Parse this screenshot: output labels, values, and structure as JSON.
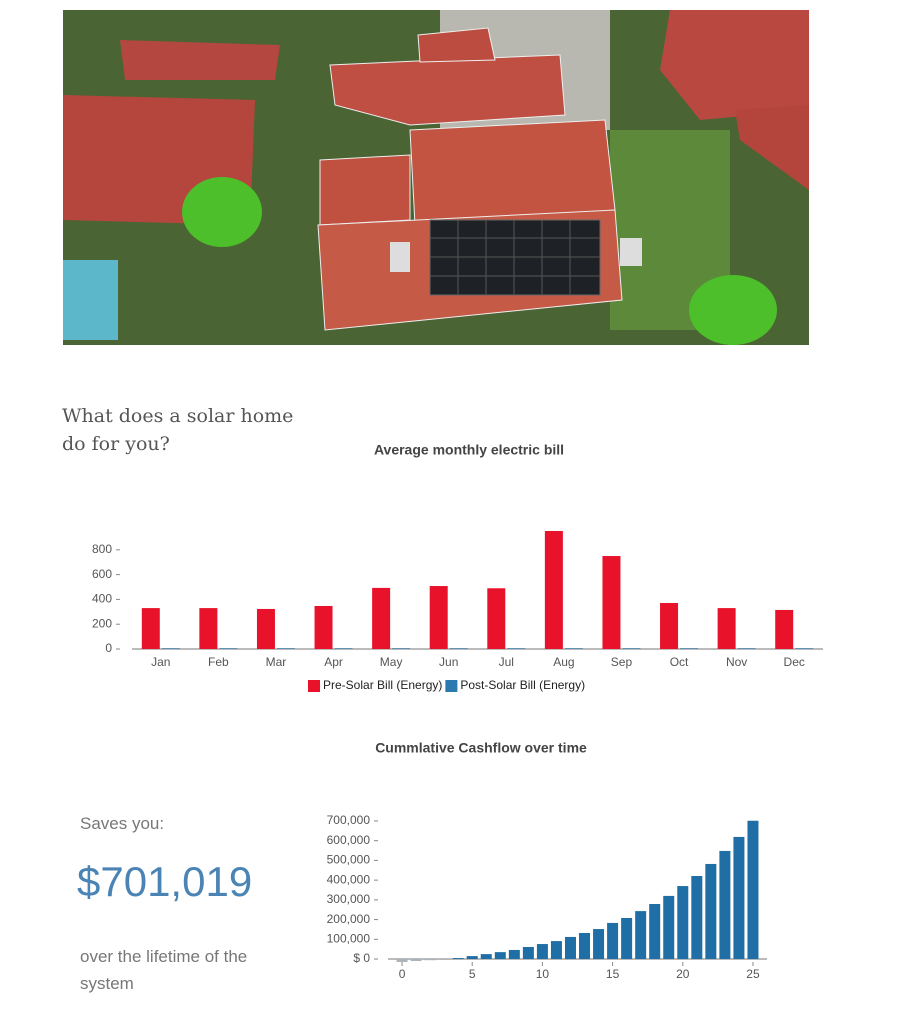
{
  "heading": "What does a solar home do for you?",
  "savings": {
    "label": "Saves you:",
    "amount": "$701,019",
    "note": "over the lifetime of the system"
  },
  "chart_data": [
    {
      "type": "bar",
      "title": "Average monthly electric bill",
      "categories": [
        "Jan",
        "Feb",
        "Mar",
        "Apr",
        "May",
        "Jun",
        "Jul",
        "Aug",
        "Sep",
        "Oct",
        "Nov",
        "Dec"
      ],
      "series": [
        {
          "name": "Pre-Solar Bill (Energy)",
          "color": "#e8132b",
          "values": [
            330,
            330,
            323,
            347,
            493,
            508,
            490,
            952,
            750,
            371,
            330,
            315
          ]
        },
        {
          "name": "Post-Solar Bill (Energy)",
          "color": "#2a7ab0",
          "values": [
            5,
            5,
            5,
            5,
            5,
            5,
            5,
            5,
            5,
            5,
            5,
            5
          ]
        }
      ],
      "ylim": [
        0,
        960
      ],
      "yticks": [
        0,
        200,
        400,
        600,
        800
      ],
      "legend": "bottom"
    },
    {
      "type": "bar",
      "title": "Cummlative Cashflow over time",
      "x": [
        0,
        1,
        2,
        3,
        4,
        5,
        6,
        7,
        8,
        9,
        10,
        11,
        12,
        13,
        14,
        15,
        16,
        17,
        18,
        19,
        20,
        21,
        22,
        23,
        24,
        25
      ],
      "values": [
        -15000,
        -10000,
        -6000,
        -2000,
        5000,
        15000,
        25000,
        35000,
        46000,
        61000,
        76000,
        91000,
        112000,
        132000,
        152000,
        183000,
        208000,
        243000,
        279000,
        320000,
        370000,
        421000,
        482000,
        548000,
        619000,
        701019
      ],
      "color": "#1f6ea5",
      "xlim": [
        -1,
        26
      ],
      "xticks": [
        0,
        5,
        10,
        15,
        20,
        25
      ],
      "ylim": [
        -15000,
        720000
      ],
      "yticks": [
        {
          "value": 0,
          "label": "$ 0"
        },
        {
          "value": 100000,
          "label": "100,000"
        },
        {
          "value": 200000,
          "label": "200,000"
        },
        {
          "value": 300000,
          "label": "300,000"
        },
        {
          "value": 400000,
          "label": "400,000"
        },
        {
          "value": 500000,
          "label": "500,000"
        },
        {
          "value": 600000,
          "label": "600,000"
        },
        {
          "value": 700000,
          "label": "700,000"
        }
      ]
    }
  ]
}
